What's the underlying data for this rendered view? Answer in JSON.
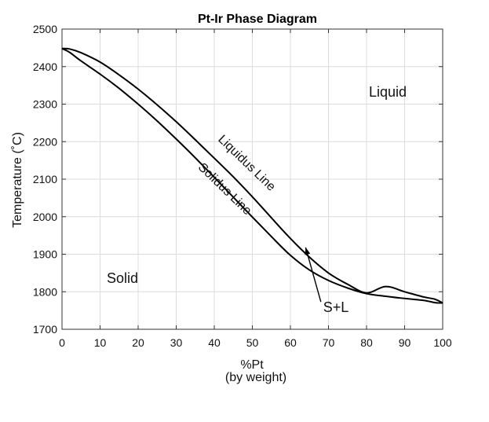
{
  "chart_data": {
    "type": "line",
    "title": "Pt-Ir Phase Diagram",
    "xlabel": "%Pt",
    "xlabel_sub": "(by weight)",
    "ylabel": "Temperature (˚C)",
    "xlim": [
      0,
      100
    ],
    "ylim": [
      1700,
      2500
    ],
    "xticks": [
      0,
      10,
      20,
      30,
      40,
      50,
      60,
      70,
      80,
      90,
      100
    ],
    "yticks": [
      1700,
      1800,
      1900,
      2000,
      2100,
      2200,
      2300,
      2400,
      2500
    ],
    "grid": true,
    "series": [
      {
        "name": "Liquidus Line",
        "x": [
          0,
          2,
          5,
          10,
          15,
          20,
          25,
          30,
          35,
          40,
          45,
          50,
          55,
          60,
          65,
          70,
          75,
          80,
          85,
          90,
          95,
          98,
          100
        ],
        "y": [
          2448,
          2447,
          2437,
          2412,
          2378,
          2340,
          2298,
          2253,
          2205,
          2156,
          2106,
          2053,
          1997,
          1942,
          1892,
          1850,
          1820,
          1797,
          1814,
          1800,
          1786,
          1780,
          1770
        ]
      },
      {
        "name": "Solidus Line",
        "x": [
          0,
          2,
          5,
          10,
          15,
          20,
          25,
          30,
          35,
          40,
          45,
          50,
          55,
          60,
          65,
          70,
          75,
          80,
          85,
          90,
          95,
          98,
          100
        ],
        "y": [
          2448,
          2438,
          2415,
          2380,
          2342,
          2300,
          2255,
          2207,
          2157,
          2105,
          2052,
          1999,
          1947,
          1897,
          1858,
          1830,
          1810,
          1795,
          1788,
          1782,
          1777,
          1771,
          1770
        ]
      }
    ],
    "region_labels": {
      "liquid": "Liquid",
      "solid": "Solid",
      "two_phase": "S+L"
    },
    "arrow": {
      "from": [
        68,
        1773
      ],
      "to": [
        64,
        1918
      ]
    }
  }
}
